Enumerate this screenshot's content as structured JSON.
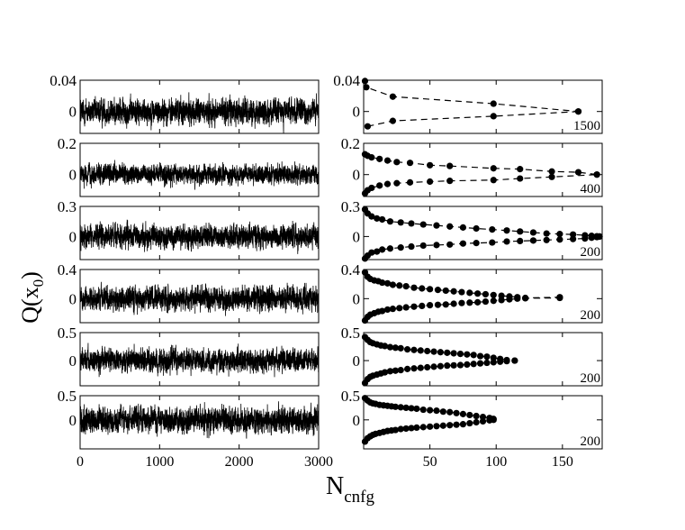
{
  "figure": {
    "ylabel_main": "Q(x",
    "ylabel_sub": "0",
    "ylabel_close": ")",
    "xlabel_main": "N",
    "xlabel_sub": "cnfg"
  },
  "chart_data": [
    {
      "type": "line",
      "column": "left",
      "row": 1,
      "ylim": [
        -0.028,
        0.04
      ],
      "yticks": [
        0,
        0.04
      ],
      "ytick_labels": [
        "0",
        "0.04"
      ],
      "xlim": [
        0,
        3000
      ],
      "n_points": 3000,
      "amplitude": 0.012,
      "description_of_series": "noisy time series of Q(x0) around 0"
    },
    {
      "type": "line",
      "column": "left",
      "row": 2,
      "ylim": [
        -0.14,
        0.2
      ],
      "yticks": [
        0,
        0.2
      ],
      "ytick_labels": [
        "0",
        "0.2"
      ],
      "xlim": [
        0,
        3000
      ],
      "n_points": 3000,
      "amplitude": 0.045
    },
    {
      "type": "line",
      "column": "left",
      "row": 3,
      "ylim": [
        -0.23,
        0.3
      ],
      "yticks": [
        0,
        0.3
      ],
      "ytick_labels": [
        "0",
        "0.3"
      ],
      "xlim": [
        0,
        3000
      ],
      "n_points": 3000,
      "amplitude": 0.085
    },
    {
      "type": "line",
      "column": "left",
      "row": 4,
      "ylim": [
        -0.33,
        0.4
      ],
      "yticks": [
        0,
        0.4
      ],
      "ytick_labels": [
        "0",
        "0.4"
      ],
      "xlim": [
        0,
        3000
      ],
      "n_points": 3000,
      "amplitude": 0.12
    },
    {
      "type": "line",
      "column": "left",
      "row": 5,
      "ylim": [
        -0.45,
        0.5
      ],
      "yticks": [
        0,
        0.5
      ],
      "ytick_labels": [
        "0",
        "0.5"
      ],
      "xlim": [
        0,
        3000
      ],
      "n_points": 3000,
      "amplitude": 0.15
    },
    {
      "type": "line",
      "column": "left",
      "row": 6,
      "ylim": [
        -0.6,
        0.5
      ],
      "yticks": [
        0,
        0.5
      ],
      "ytick_labels": [
        "0",
        "0.5"
      ],
      "xlim": [
        0,
        3000
      ],
      "xticks": [
        0,
        1000,
        2000,
        3000
      ],
      "xtick_labels": [
        "0",
        "1000",
        "2000",
        "3000"
      ],
      "n_points": 3000,
      "amplitude": 0.2
    },
    {
      "type": "scatter",
      "column": "right",
      "row": 1,
      "panel_label": "1500",
      "ylim": [
        -0.028,
        0.04
      ],
      "yticks": [
        0,
        0.04
      ],
      "ytick_labels": [
        "0",
        "0.04"
      ],
      "xlim": [
        0,
        180
      ],
      "series": [
        {
          "x": [
            1,
            2,
            22,
            98,
            162
          ],
          "y": [
            0.039,
            0.031,
            0.019,
            0.01,
            0.0
          ]
        },
        {
          "x": [
            3,
            22,
            98,
            162
          ],
          "y": [
            -0.019,
            -0.012,
            -0.006,
            0.0
          ]
        }
      ]
    },
    {
      "type": "scatter",
      "column": "right",
      "row": 2,
      "panel_label": "400",
      "ylim": [
        -0.14,
        0.2
      ],
      "yticks": [
        0,
        0.2
      ],
      "ytick_labels": [
        "0",
        "0.2"
      ],
      "xlim": [
        0,
        180
      ],
      "series": [
        {
          "x": [
            1,
            3,
            6,
            12,
            18,
            25,
            35,
            50,
            65,
            98,
            118,
            142,
            162,
            176
          ],
          "y": [
            0.13,
            0.12,
            0.11,
            0.1,
            0.09,
            0.08,
            0.075,
            0.06,
            0.055,
            0.04,
            0.035,
            0.02,
            0.015,
            0.0
          ]
        },
        {
          "x": [
            1,
            3,
            6,
            12,
            18,
            25,
            35,
            50,
            65,
            98,
            118,
            142,
            176
          ],
          "y": [
            -0.12,
            -0.1,
            -0.085,
            -0.07,
            -0.06,
            -0.055,
            -0.05,
            -0.045,
            -0.04,
            -0.035,
            -0.025,
            -0.015,
            0.0
          ]
        }
      ]
    },
    {
      "type": "scatter",
      "column": "right",
      "row": 3,
      "panel_label": "200",
      "ylim": [
        -0.23,
        0.3
      ],
      "yticks": [
        0,
        0.3
      ],
      "ytick_labels": [
        "0",
        "0.3"
      ],
      "xlim": [
        0,
        180
      ],
      "series": [
        {
          "x": [
            1,
            3,
            6,
            10,
            14,
            20,
            28,
            36,
            45,
            55,
            65,
            75,
            85,
            97,
            108,
            118,
            128,
            138,
            148,
            158,
            167,
            172,
            176,
            178
          ],
          "y": [
            0.27,
            0.23,
            0.2,
            0.18,
            0.17,
            0.15,
            0.14,
            0.13,
            0.12,
            0.11,
            0.1,
            0.09,
            0.08,
            0.07,
            0.06,
            0.05,
            0.04,
            0.03,
            0.025,
            0.02,
            0.012,
            0.007,
            0.003,
            0.0
          ]
        },
        {
          "x": [
            1,
            3,
            6,
            10,
            14,
            20,
            28,
            36,
            45,
            55,
            65,
            75,
            85,
            97,
            108,
            118,
            128,
            138,
            148,
            158,
            167,
            172,
            176,
            178
          ],
          "y": [
            -0.22,
            -0.19,
            -0.16,
            -0.15,
            -0.13,
            -0.12,
            -0.11,
            -0.1,
            -0.09,
            -0.085,
            -0.08,
            -0.07,
            -0.065,
            -0.06,
            -0.05,
            -0.045,
            -0.04,
            -0.035,
            -0.03,
            -0.025,
            -0.02,
            -0.012,
            -0.006,
            0.0
          ]
        }
      ]
    },
    {
      "type": "scatter",
      "column": "right",
      "row": 4,
      "panel_label": "200",
      "ylim": [
        -0.33,
        0.4
      ],
      "yticks": [
        0,
        0.4
      ],
      "ytick_labels": [
        "0",
        "0.4"
      ],
      "xlim": [
        0,
        180
      ],
      "series": [
        {
          "x": [
            1,
            3,
            5,
            8,
            11,
            14,
            18,
            22,
            27,
            32,
            38,
            44,
            50,
            56,
            62,
            68,
            74,
            80,
            86,
            92,
            98,
            104,
            110,
            116,
            122,
            148
          ],
          "y": [
            0.36,
            0.3,
            0.27,
            0.25,
            0.24,
            0.22,
            0.21,
            0.19,
            0.18,
            0.17,
            0.15,
            0.14,
            0.13,
            0.12,
            0.11,
            0.1,
            0.09,
            0.08,
            0.07,
            0.06,
            0.05,
            0.04,
            0.03,
            0.02,
            0.01,
            0.02
          ]
        },
        {
          "x": [
            1,
            3,
            5,
            8,
            11,
            14,
            18,
            22,
            27,
            32,
            38,
            44,
            50,
            56,
            62,
            68,
            74,
            80,
            86,
            92,
            98,
            104,
            110,
            116,
            122,
            148
          ],
          "y": [
            -0.3,
            -0.25,
            -0.22,
            -0.2,
            -0.18,
            -0.17,
            -0.15,
            -0.14,
            -0.13,
            -0.12,
            -0.11,
            -0.1,
            -0.09,
            -0.085,
            -0.08,
            -0.07,
            -0.06,
            -0.055,
            -0.05,
            -0.04,
            -0.03,
            -0.02,
            -0.01,
            0.0,
            0.005,
            0.01
          ]
        }
      ]
    },
    {
      "type": "scatter",
      "column": "right",
      "row": 5,
      "panel_label": "200",
      "ylim": [
        -0.45,
        0.5
      ],
      "yticks": [
        0,
        0.5
      ],
      "ytick_labels": [
        "0",
        "0.5"
      ],
      "xlim": [
        0,
        180
      ],
      "series": [
        {
          "x": [
            1,
            3,
            5,
            7,
            10,
            13,
            16,
            20,
            24,
            28,
            33,
            38,
            43,
            48,
            53,
            58,
            63,
            68,
            73,
            78,
            83,
            88,
            93,
            98,
            103,
            108,
            114
          ],
          "y": [
            0.42,
            0.37,
            0.33,
            0.31,
            0.29,
            0.27,
            0.26,
            0.24,
            0.23,
            0.22,
            0.2,
            0.19,
            0.18,
            0.17,
            0.16,
            0.15,
            0.14,
            0.13,
            0.12,
            0.11,
            0.1,
            0.08,
            0.07,
            0.05,
            0.03,
            0.01,
            0.0
          ]
        },
        {
          "x": [
            1,
            3,
            5,
            7,
            10,
            13,
            16,
            20,
            24,
            28,
            33,
            38,
            43,
            48,
            53,
            58,
            63,
            68,
            73,
            78,
            83,
            88,
            93,
            98,
            103,
            108,
            114
          ],
          "y": [
            -0.4,
            -0.33,
            -0.29,
            -0.27,
            -0.25,
            -0.23,
            -0.21,
            -0.19,
            -0.18,
            -0.17,
            -0.15,
            -0.14,
            -0.13,
            -0.12,
            -0.11,
            -0.1,
            -0.09,
            -0.085,
            -0.08,
            -0.07,
            -0.06,
            -0.05,
            -0.04,
            -0.03,
            -0.02,
            -0.01,
            0.0
          ]
        }
      ]
    },
    {
      "type": "scatter",
      "column": "right",
      "row": 6,
      "panel_label": "200",
      "ylim": [
        -0.6,
        0.5
      ],
      "yticks": [
        0,
        0.5
      ],
      "ytick_labels": [
        "0",
        "0.5"
      ],
      "xlim": [
        0,
        180
      ],
      "xticks": [
        50,
        100,
        150
      ],
      "xtick_labels": [
        "50",
        "100",
        "150"
      ],
      "series": [
        {
          "x": [
            1,
            3,
            5,
            7,
            9,
            12,
            15,
            18,
            21,
            24,
            28,
            32,
            36,
            40,
            45,
            50,
            55,
            60,
            65,
            70,
            75,
            80,
            85,
            90,
            95,
            98
          ],
          "y": [
            0.45,
            0.4,
            0.36,
            0.34,
            0.33,
            0.31,
            0.3,
            0.29,
            0.28,
            0.27,
            0.26,
            0.25,
            0.24,
            0.23,
            0.21,
            0.2,
            0.19,
            0.17,
            0.16,
            0.14,
            0.12,
            0.1,
            0.08,
            0.06,
            0.04,
            0.02
          ]
        },
        {
          "x": [
            1,
            3,
            5,
            7,
            9,
            12,
            15,
            18,
            21,
            24,
            28,
            32,
            36,
            40,
            45,
            50,
            55,
            60,
            65,
            70,
            75,
            80,
            85,
            90,
            95,
            98
          ],
          "y": [
            -0.45,
            -0.38,
            -0.34,
            -0.31,
            -0.29,
            -0.27,
            -0.25,
            -0.23,
            -0.22,
            -0.21,
            -0.19,
            -0.18,
            -0.17,
            -0.16,
            -0.15,
            -0.14,
            -0.13,
            -0.12,
            -0.11,
            -0.1,
            -0.09,
            -0.07,
            -0.05,
            -0.03,
            -0.01,
            0.0
          ]
        }
      ]
    }
  ]
}
